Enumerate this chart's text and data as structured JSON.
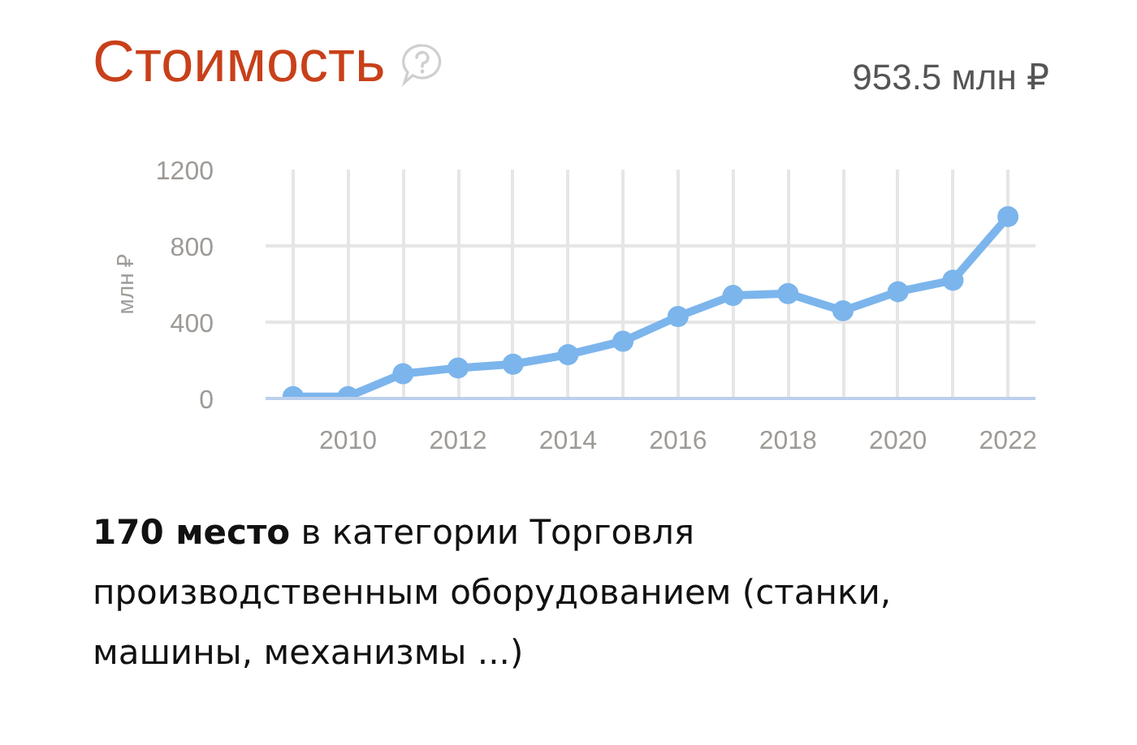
{
  "chart_data": {
    "type": "line",
    "title": "Стоимость",
    "ylabel": "млн ₽",
    "x": [
      2009,
      2010,
      2011,
      2012,
      2013,
      2014,
      2015,
      2016,
      2017,
      2018,
      2019,
      2020,
      2021,
      2022
    ],
    "series": [
      {
        "color": "#7cb5ec",
        "values": [
          10,
          10,
          130,
          160,
          180,
          230,
          300,
          430,
          540,
          550,
          460,
          560,
          620,
          953.5
        ]
      }
    ],
    "xlim": [
      2008.5,
      2022.5
    ],
    "ylim": [
      0,
      1200
    ],
    "xticks": [
      {
        "value": 2009,
        "label": null
      },
      2010,
      {
        "value": 2011,
        "label": null
      },
      2012,
      {
        "value": 2013,
        "label": null
      },
      2014,
      {
        "value": 2015,
        "label": null
      },
      2016,
      {
        "value": 2017,
        "label": null
      },
      2018,
      {
        "value": 2019,
        "label": null
      },
      2020,
      {
        "value": 2021,
        "label": null
      },
      2022
    ],
    "yticks": [
      0,
      400,
      800,
      1200
    ],
    "grid": true,
    "marker": "circle",
    "line_style": "solid",
    "annotations": [
      "953.5 млн ₽",
      "170 место",
      "в категории Торговля производственным оборудованием (станки, машины, механизмы ...)"
    ]
  }
}
